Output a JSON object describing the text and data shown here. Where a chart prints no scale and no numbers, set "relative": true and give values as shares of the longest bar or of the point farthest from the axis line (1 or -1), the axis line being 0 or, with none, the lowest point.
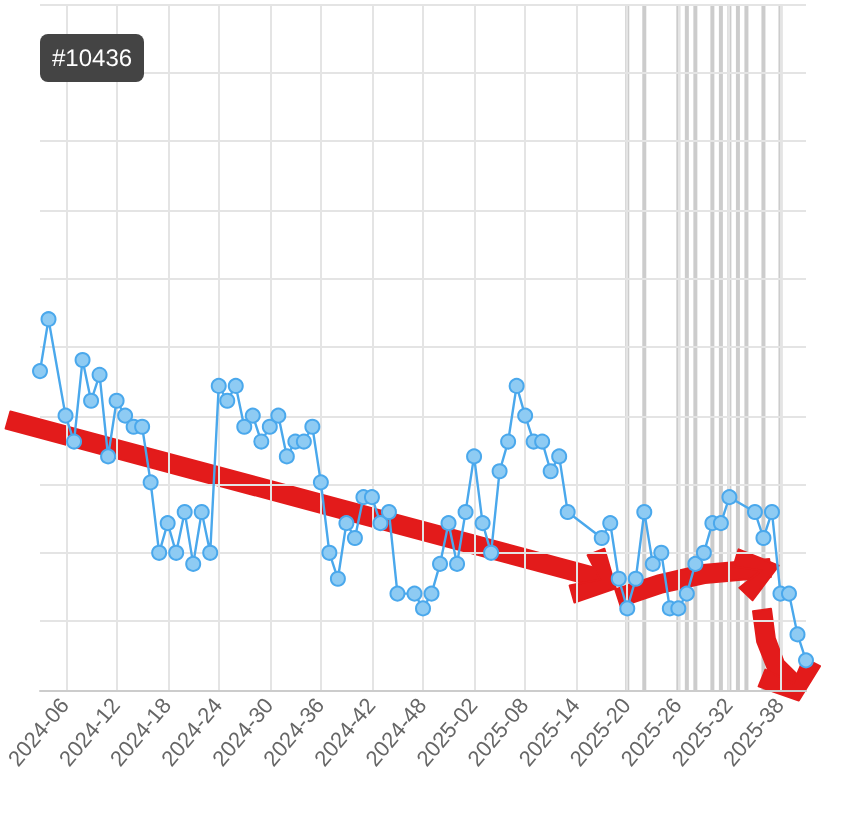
{
  "chart_data": {
    "type": "line",
    "relative": true,
    "color": "#4aa8ec",
    "marker": "circle",
    "grid": true,
    "annotations": [
      "#10436"
    ],
    "categories": [
      null,
      null,
      null,
      "2024-06",
      null,
      null,
      null,
      null,
      null,
      "2024-12",
      null,
      null,
      null,
      null,
      null,
      "2024-18",
      null,
      null,
      null,
      null,
      null,
      "2024-24",
      null,
      null,
      null,
      null,
      null,
      "2024-30",
      null,
      null,
      null,
      null,
      null,
      "2024-36",
      null,
      null,
      null,
      null,
      null,
      "2024-42",
      null,
      null,
      null,
      null,
      null,
      "2024-48",
      null,
      null,
      null,
      null,
      null,
      "2025-02",
      null,
      null,
      null,
      null,
      null,
      "2025-08",
      null,
      null,
      null,
      null,
      null,
      "2025-14",
      null,
      null,
      null,
      null,
      null,
      "2025-20",
      null,
      null,
      null,
      null,
      null,
      "2025-26",
      null,
      null,
      null,
      null,
      null,
      "2025-32",
      null,
      null,
      null,
      null,
      null,
      "2025-38",
      null,
      null,
      null
    ],
    "values": [
      0.86,
      1,
      null,
      0.74,
      0.67,
      0.89,
      0.78,
      0.85,
      0.63,
      0.78,
      0.74,
      0.71,
      0.71,
      0.56,
      0.37,
      0.45,
      0.37,
      0.48,
      0.34,
      0.48,
      0.37,
      0.82,
      0.78,
      0.82,
      0.71,
      0.74,
      0.67,
      0.71,
      0.74,
      0.63,
      0.67,
      0.67,
      0.71,
      0.56,
      0.37,
      0.3,
      0.45,
      0.41,
      0.52,
      0.52,
      0.45,
      0.48,
      0.26,
      null,
      0.26,
      0.22,
      0.26,
      0.34,
      0.45,
      0.34,
      0.48,
      0.63,
      0.45,
      0.37,
      0.59,
      0.67,
      0.82,
      0.74,
      0.67,
      0.67,
      0.59,
      0.63,
      0.48,
      null,
      null,
      null,
      0.41,
      0.45,
      0.3,
      0.22,
      0.3,
      0.48,
      0.34,
      0.37,
      0.22,
      0.22,
      0.26,
      0.34,
      0.37,
      0.45,
      0.45,
      0.52,
      null,
      null,
      0.48,
      0.41,
      0.48,
      0.26,
      0.26,
      0.15,
      0.08
    ]
  }
}
